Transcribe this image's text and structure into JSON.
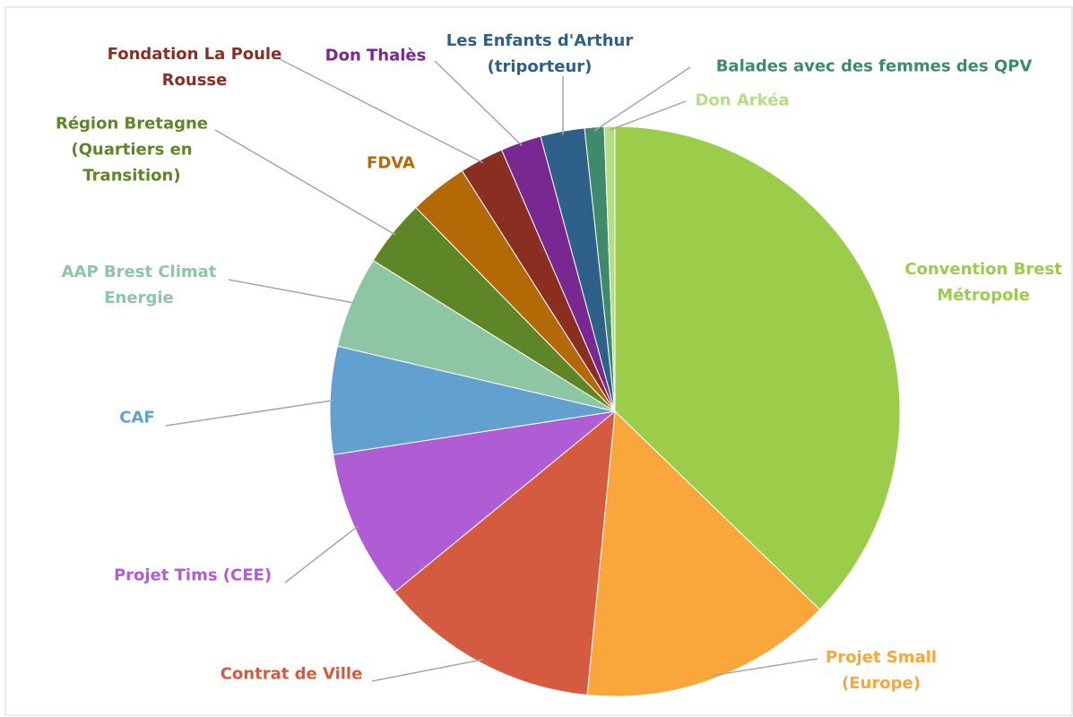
{
  "chart_data": {
    "type": "pie",
    "categories": [
      "Convention Brest\nMétropole",
      "Projet Small\n(Europe)",
      "Contrat de Ville",
      "Projet Tims (CEE)",
      "CAF",
      "AAP Brest Climat\nEnergie",
      "Région Bretagne\n(Quartiers en\nTransition)",
      "FDVA",
      "Fondation La Poule\nRousse",
      "Don Thalès",
      "Les Enfants d'Arthur\n(triporteur)",
      "Balades avec des femmes des QPV",
      "Don Arkéa"
    ],
    "values": [
      37.2,
      14.3,
      12.5,
      8.5,
      6.1,
      5.2,
      3.8,
      3.3,
      2.5,
      2.3,
      2.5,
      1.1,
      0.6
    ],
    "colors": [
      "#9bcd4b",
      "#f9a63a",
      "#d45b3f",
      "#b05cd4",
      "#62a0cf",
      "#8ec5a5",
      "#5e8526",
      "#b36a06",
      "#8a2e22",
      "#7a2891",
      "#2e6089",
      "#3e8a6a",
      "#b5de84"
    ]
  }
}
